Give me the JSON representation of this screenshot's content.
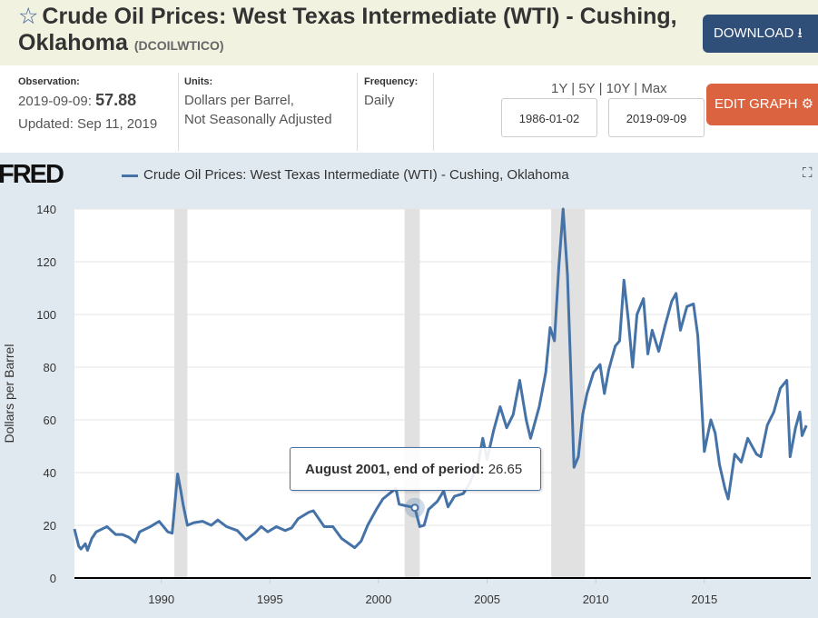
{
  "header": {
    "title": "Crude Oil Prices: West Texas Intermediate (WTI) - Cushing, Oklahoma",
    "code": "(DCOILWTICO)",
    "download_label": "DOWNLOAD",
    "edit_label": "EDIT GRAPH"
  },
  "meta": {
    "observation_label": "Observation:",
    "observation_date": "2019-09-09:",
    "observation_value": "57.88",
    "updated": "Updated: Sep 11, 2019",
    "units_label": "Units:",
    "units_line1": "Dollars per Barrel,",
    "units_line2": "Not Seasonally Adjusted",
    "frequency_label": "Frequency:",
    "frequency": "Daily"
  },
  "ranges": {
    "r1": "1Y",
    "r2": "5Y",
    "r3": "10Y",
    "r4": "Max",
    "sep": "|"
  },
  "dates": {
    "start": "1986-01-02",
    "end": "2019-09-09"
  },
  "brand": "FRED",
  "tooltip": {
    "label": "August 2001, end of period:",
    "value": "26.65"
  },
  "colors": {
    "series": "#4572a7",
    "recession": "#e1e1e1",
    "download": "#2f4f78",
    "edit": "#dc6340"
  },
  "chart_data": {
    "type": "line",
    "ylabel": "Dollars per Barrel",
    "ylim": [
      0,
      140
    ],
    "xlim": [
      1986.0,
      2019.9
    ],
    "yticks": [
      0,
      20,
      40,
      60,
      80,
      100,
      120,
      140
    ],
    "xticks": [
      1990,
      1995,
      2000,
      2005,
      2010,
      2015
    ],
    "grid": true,
    "legend": "top-left",
    "recessions": [
      [
        1990.6,
        1991.2
      ],
      [
        2001.2,
        2001.9
      ],
      [
        2007.95,
        2009.5
      ]
    ],
    "series": [
      {
        "name": "Crude Oil Prices: West Texas Intermediate (WTI) - Cushing, Oklahoma",
        "x": [
          1986.0,
          1986.2,
          1986.3,
          1986.5,
          1986.6,
          1986.8,
          1987.0,
          1987.5,
          1987.9,
          1988.2,
          1988.5,
          1988.8,
          1989.0,
          1989.5,
          1989.9,
          1990.3,
          1990.5,
          1990.75,
          1990.9,
          1991.0,
          1991.2,
          1991.5,
          1991.9,
          1992.3,
          1992.6,
          1993.0,
          1993.5,
          1993.9,
          1994.3,
          1994.6,
          1994.9,
          1995.3,
          1995.7,
          1996.0,
          1996.3,
          1996.8,
          1997.0,
          1997.5,
          1997.9,
          1998.3,
          1998.9,
          1999.2,
          1999.5,
          1999.9,
          2000.2,
          2000.5,
          2000.8,
          2000.95,
          2001.2,
          2001.5,
          2001.67,
          2001.9,
          2002.1,
          2002.3,
          2002.7,
          2003.0,
          2003.2,
          2003.5,
          2003.9,
          2004.2,
          2004.6,
          2004.8,
          2005.0,
          2005.3,
          2005.6,
          2005.9,
          2006.2,
          2006.5,
          2006.8,
          2007.0,
          2007.4,
          2007.7,
          2007.9,
          2008.1,
          2008.3,
          2008.5,
          2008.7,
          2008.9,
          2009.0,
          2009.2,
          2009.4,
          2009.6,
          2009.9,
          2010.2,
          2010.4,
          2010.6,
          2010.9,
          2011.1,
          2011.3,
          2011.5,
          2011.7,
          2011.9,
          2012.2,
          2012.4,
          2012.6,
          2012.9,
          2013.2,
          2013.5,
          2013.7,
          2013.9,
          2014.2,
          2014.5,
          2014.7,
          2014.9,
          2015.0,
          2015.3,
          2015.5,
          2015.7,
          2015.95,
          2016.1,
          2016.4,
          2016.7,
          2017.0,
          2017.4,
          2017.6,
          2017.9,
          2018.2,
          2018.5,
          2018.8,
          2018.95,
          2019.2,
          2019.4,
          2019.5,
          2019.7
        ],
        "values": [
          18.6,
          12,
          11,
          13,
          10.5,
          15,
          17.5,
          19.5,
          16.5,
          16.5,
          15.5,
          13.5,
          17.5,
          19.5,
          21.5,
          17.5,
          17,
          39.5,
          33,
          28,
          20,
          21,
          21.5,
          20,
          22,
          19.5,
          18,
          14.5,
          17,
          19.5,
          17.5,
          19.5,
          18,
          19,
          22.5,
          25,
          25.5,
          19.5,
          19.5,
          15,
          11.5,
          14,
          20,
          26,
          30,
          32,
          34,
          28,
          27.5,
          27,
          26.65,
          19.5,
          20,
          26,
          29,
          33,
          27,
          31,
          32,
          36,
          44,
          53,
          45,
          56,
          65,
          57,
          62,
          75,
          60,
          53,
          65,
          78,
          95,
          90,
          118,
          140,
          115,
          67,
          42,
          46,
          62,
          70,
          78,
          81,
          70,
          79,
          88,
          90,
          113,
          98,
          80,
          100,
          106,
          85,
          94,
          86,
          96,
          105,
          108,
          94,
          103,
          104,
          92,
          63,
          48,
          60,
          55,
          43,
          34,
          30,
          47,
          44,
          53,
          47,
          46,
          58,
          63,
          72,
          75,
          46,
          57,
          63,
          54,
          57.88
        ]
      }
    ],
    "highlight": {
      "x": 2001.67,
      "value": 26.65
    }
  }
}
